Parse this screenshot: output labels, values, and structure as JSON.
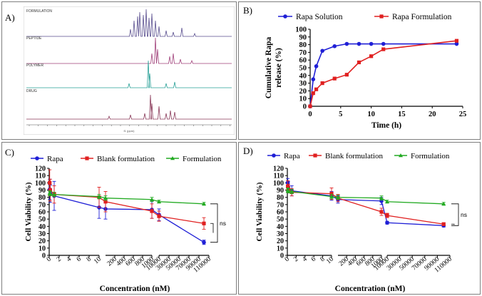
{
  "panels": {
    "a": {
      "label": "A)"
    },
    "b": {
      "label": "B)"
    },
    "c": {
      "label": "C)"
    },
    "d": {
      "label": "D)"
    }
  },
  "nmr": {
    "traces": [
      {
        "name": "FORMULATION",
        "color": "#5a4f8f"
      },
      {
        "name": "PEPTIDE",
        "color": "#a0407a"
      },
      {
        "name": "POLYMER",
        "color": "#2aa198"
      },
      {
        "name": "DRUG",
        "color": "#8a3a5a"
      }
    ],
    "axis_label": "f1 (ppm)"
  },
  "colors": {
    "blue": "#1f1fd6",
    "red": "#e02020",
    "green": "#22aa22"
  },
  "chart_data": [
    {
      "id": "B",
      "type": "line",
      "xlabel": "Time (h)",
      "ylabel": "Cumulative Rapa release (%)",
      "xlim": [
        0,
        25
      ],
      "ylim": [
        0,
        100
      ],
      "xticks": [
        0,
        5,
        10,
        15,
        20,
        25
      ],
      "yticks": [
        0,
        10,
        20,
        30,
        40,
        50,
        60,
        70,
        80,
        90,
        100
      ],
      "legend": "top",
      "series": [
        {
          "name": "Rapa Solution",
          "color": "#1f1fd6",
          "marker": "circle",
          "x": [
            0,
            0.5,
            1,
            2,
            4,
            6,
            8,
            10,
            12,
            24
          ],
          "y": [
            0,
            35,
            52,
            72,
            78,
            81,
            81,
            81,
            81,
            81
          ]
        },
        {
          "name": "Rapa Formulation",
          "color": "#e02020",
          "marker": "square",
          "x": [
            0,
            0.5,
            1,
            2,
            4,
            6,
            8,
            10,
            12,
            24
          ],
          "y": [
            0,
            17,
            22,
            30,
            36,
            41,
            57,
            65,
            74,
            85
          ]
        }
      ]
    },
    {
      "id": "C",
      "type": "line",
      "xlabel": "Concentration (nM)",
      "ylabel": "Cell Viability (%)",
      "ylim": [
        0,
        120
      ],
      "yticks": [
        0,
        10,
        20,
        30,
        40,
        50,
        60,
        70,
        80,
        90,
        100,
        110,
        120
      ],
      "segments": [
        {
          "range": [
            0,
            10
          ],
          "ticks": [
            "0",
            "2",
            "4",
            "6",
            "8",
            "10"
          ]
        },
        {
          "range": [
            100,
            1000
          ],
          "ticks": [
            "200",
            "400",
            "600",
            "800",
            "1000"
          ]
        },
        {
          "range": [
            10000,
            110000
          ],
          "ticks": [
            "10000",
            "30000",
            "50000",
            "70000",
            "90000",
            "110000"
          ]
        }
      ],
      "legend": "top",
      "annotation": "ns",
      "series": [
        {
          "name": "Rapa",
          "color": "#1f1fd6",
          "marker": "circle",
          "x": [
            0.1,
            0.2,
            1,
            10,
            100,
            1000,
            10000,
            100000
          ],
          "y": [
            91,
            85,
            82,
            66,
            64,
            63,
            56,
            18
          ],
          "err": [
            14,
            12,
            20,
            15,
            14,
            12,
            8,
            3
          ]
        },
        {
          "name": "Blank formulation",
          "color": "#e02020",
          "marker": "square",
          "x": [
            0.1,
            0.2,
            1,
            10,
            100,
            1000,
            10000,
            100000
          ],
          "y": [
            100,
            90,
            84,
            80,
            74,
            61,
            54,
            44
          ],
          "err": [
            18,
            15,
            12,
            14,
            14,
            10,
            7,
            8
          ]
        },
        {
          "name": "Formulation",
          "color": "#22aa22",
          "marker": "triangle",
          "x": [
            0.1,
            0.2,
            1,
            10,
            100,
            1000,
            10000,
            100000
          ],
          "y": [
            86,
            85,
            84,
            81,
            79,
            77,
            74,
            71
          ],
          "err": [
            3,
            3,
            3,
            3,
            3,
            3,
            2,
            2
          ]
        }
      ]
    },
    {
      "id": "D",
      "type": "line",
      "xlabel": "Concentration (nM)",
      "ylabel": "Cell Viability (%)",
      "ylim": [
        0,
        120
      ],
      "yticks": [
        0,
        10,
        20,
        30,
        40,
        50,
        60,
        70,
        80,
        90,
        100,
        110,
        120
      ],
      "segments": [
        {
          "range": [
            0,
            10
          ],
          "ticks": [
            "0",
            "2",
            "4",
            "6",
            "8",
            "10"
          ]
        },
        {
          "range": [
            100,
            1000
          ],
          "ticks": [
            "200",
            "400",
            "600",
            "800",
            "1000"
          ]
        },
        {
          "range": [
            10000,
            110000
          ],
          "ticks": [
            "10000",
            "30000",
            "50000",
            "70000",
            "90000",
            "110000"
          ]
        }
      ],
      "legend": "top",
      "annotation": "ns",
      "series": [
        {
          "name": "Rapa",
          "color": "#1f1fd6",
          "marker": "circle",
          "x": [
            0.1,
            0.2,
            1,
            10,
            100,
            1000,
            10000,
            100000
          ],
          "y": [
            100,
            94,
            89,
            82,
            77,
            75,
            45,
            41
          ],
          "err": [
            6,
            8,
            7,
            6,
            5,
            5,
            2,
            2
          ]
        },
        {
          "name": "Blank formulation",
          "color": "#e02020",
          "marker": "square",
          "x": [
            0.1,
            0.2,
            1,
            10,
            100,
            1000,
            10000,
            100000
          ],
          "y": [
            95,
            92,
            87,
            85,
            79,
            60,
            55,
            43
          ],
          "err": [
            8,
            6,
            5,
            8,
            5,
            5,
            3,
            2
          ]
        },
        {
          "name": "Formulation",
          "color": "#22aa22",
          "marker": "triangle",
          "x": [
            0.1,
            0.2,
            1,
            10,
            100,
            1000,
            10000,
            100000
          ],
          "y": [
            90,
            89,
            88,
            81,
            80,
            79,
            74,
            71
          ],
          "err": [
            3,
            3,
            3,
            3,
            3,
            3,
            2,
            2
          ]
        }
      ]
    }
  ]
}
